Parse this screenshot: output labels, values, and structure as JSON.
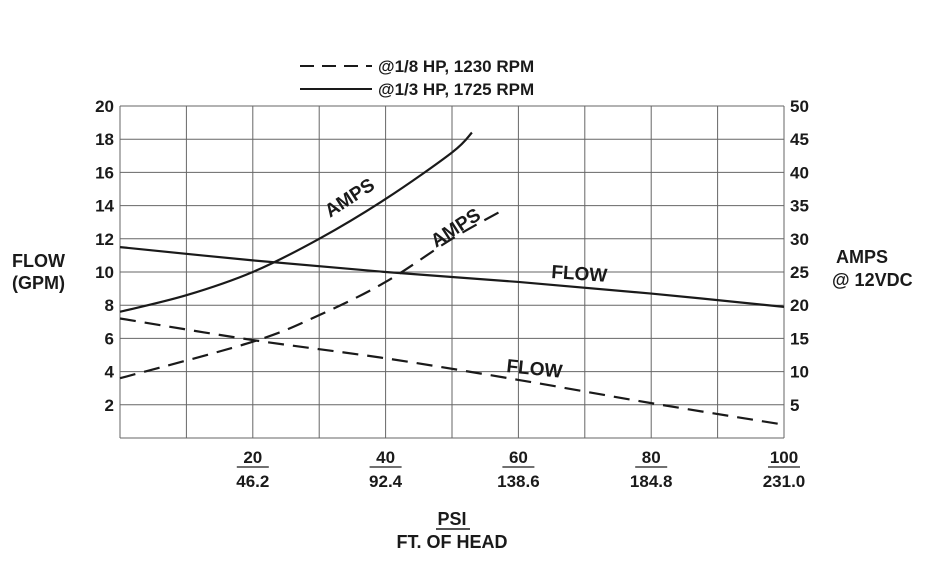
{
  "chart_data": {
    "type": "line",
    "x": [
      0,
      20,
      40,
      60,
      80,
      100
    ],
    "xlabel_primary": "PSI",
    "xlabel_secondary": "FT. OF HEAD",
    "x_tick_labels_primary": [
      "20",
      "40",
      "60",
      "80",
      "100"
    ],
    "x_tick_labels_secondary": [
      "46.2",
      "92.4",
      "138.6",
      "184.8",
      "231.0"
    ],
    "xlim": [
      0,
      100
    ],
    "ylabel_left": [
      "FLOW",
      "(GPM)"
    ],
    "ylim_left": [
      0,
      20
    ],
    "y_ticks_left": [
      "2",
      "4",
      "6",
      "8",
      "10",
      "12",
      "14",
      "16",
      "18",
      "20"
    ],
    "ylabel_right": [
      "AMPS",
      "@ 12VDC"
    ],
    "ylim_right": [
      0,
      50
    ],
    "y_ticks_right": [
      "5",
      "10",
      "15",
      "20",
      "25",
      "30",
      "35",
      "40",
      "45",
      "50"
    ],
    "grid": true,
    "legend": {
      "placement": "top-center",
      "entries": [
        {
          "label": "@1/8 HP, 1230 RPM",
          "style": "dashed"
        },
        {
          "label": "@1/3 HP, 1725 RPM",
          "style": "solid"
        }
      ]
    },
    "annotations": {
      "amps_solid": "AMPS",
      "amps_dashed": "AMPS",
      "flow_solid": "FLOW",
      "flow_dashed": "FLOW"
    },
    "series": [
      {
        "legend": "@1/3 HP, 1725 RPM",
        "quantity": "flow",
        "axis": "left",
        "style": "solid",
        "points": [
          [
            0,
            11.5
          ],
          [
            20,
            10.7
          ],
          [
            40,
            10.0
          ],
          [
            60,
            9.4
          ],
          [
            80,
            8.7
          ],
          [
            100,
            7.9
          ]
        ]
      },
      {
        "legend": "@1/3 HP, 1725 RPM",
        "quantity": "amps",
        "axis": "right",
        "style": "solid",
        "points": [
          [
            0,
            19
          ],
          [
            10,
            21.5
          ],
          [
            20,
            25
          ],
          [
            30,
            30
          ],
          [
            40,
            36
          ],
          [
            50,
            43
          ],
          [
            53,
            46
          ]
        ]
      },
      {
        "legend": "@1/8 HP, 1230 RPM",
        "quantity": "flow",
        "axis": "left",
        "style": "dashed",
        "points": [
          [
            0,
            7.2
          ],
          [
            20,
            5.9
          ],
          [
            40,
            4.8
          ],
          [
            60,
            3.5
          ],
          [
            80,
            2.1
          ],
          [
            100,
            0.8
          ]
        ]
      },
      {
        "legend": "@1/8 HP, 1230 RPM",
        "quantity": "amps",
        "axis": "right",
        "style": "dashed",
        "points": [
          [
            0,
            9
          ],
          [
            20,
            14.5
          ],
          [
            30,
            18.5
          ],
          [
            40,
            23.5
          ],
          [
            50,
            30
          ],
          [
            58,
            34.5
          ]
        ]
      }
    ]
  }
}
